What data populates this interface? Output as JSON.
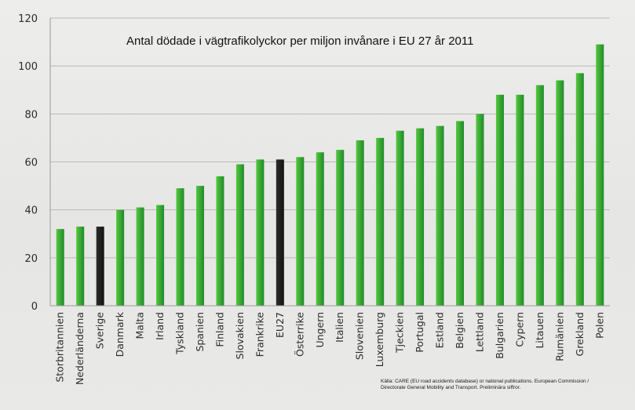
{
  "chart_data": {
    "type": "bar",
    "title": "Antal dödade i vägtrafikolyckor per miljon invånare i EU 27 år 2011",
    "xlabel": "",
    "ylabel": "",
    "ylim": [
      0,
      120
    ],
    "yticks": [
      0,
      20,
      40,
      60,
      80,
      100,
      120
    ],
    "grid": true,
    "categories": [
      "Storbritannien",
      "Nederländerna",
      "Sverige",
      "Danmark",
      "Malta",
      "Irland",
      "Tyskland",
      "Spanien",
      "Finland",
      "Slovakien",
      "Frankrike",
      "EU27",
      "Österrike",
      "Ungern",
      "Italien",
      "Slovenien",
      "Luxemburg",
      "Tjeckien",
      "Portugal",
      "Estland",
      "Belgien",
      "Lettland",
      "Bulgarien",
      "Cypern",
      "Litauen",
      "Rumänien",
      "Grekland",
      "Polen"
    ],
    "values": [
      32,
      33,
      33,
      40,
      41,
      42,
      49,
      50,
      54,
      59,
      61,
      61,
      62,
      64,
      65,
      69,
      70,
      73,
      74,
      75,
      77,
      80,
      88,
      88,
      92,
      94,
      97,
      109
    ],
    "highlighted": [
      "Sverige",
      "EU27"
    ],
    "source_lines": [
      "Källa: CARE (EU road accidents database) or national publications. European Commission /",
      "Directorate General Mobility and Transport. Preliminära siffror."
    ]
  },
  "colors": {
    "bar_start": "#55c73e",
    "bar_end": "#1f8b2a",
    "highlight": "#141414",
    "grid": "#b9b9b9",
    "axis": "#9a9a9a"
  }
}
